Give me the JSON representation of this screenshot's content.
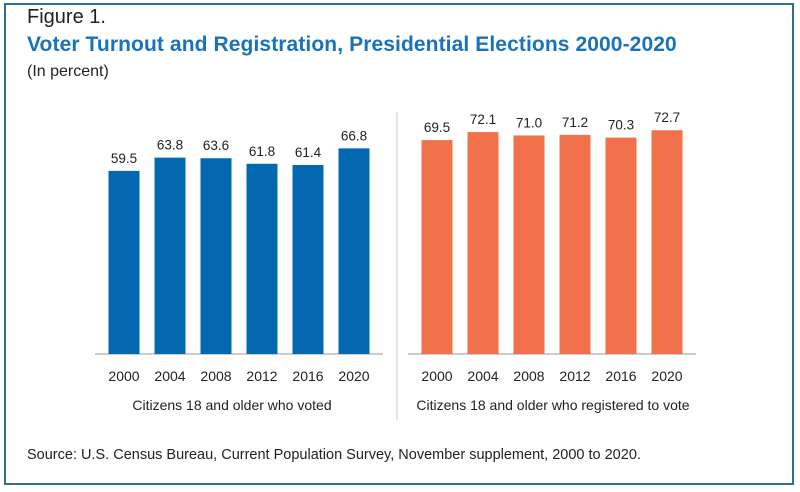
{
  "figure": {
    "label": "Figure 1.",
    "title": "Voter Turnout and Registration, Presidential Elections 2000-2020",
    "subtitle": "(In percent)",
    "source": "Source: U.S. Census Bureau, Current Population Survey, November supplement, 2000 to 2020."
  },
  "colors": {
    "voted": "#0468b1",
    "registered": "#f0714a",
    "frame": "#2b6f96",
    "title": "#1a73b8"
  },
  "chart_data": [
    {
      "type": "bar",
      "title": "",
      "xlabel": "Citizens 18 and older who voted",
      "ylabel": "",
      "categories": [
        "2000",
        "2004",
        "2008",
        "2012",
        "2016",
        "2020"
      ],
      "values": [
        59.5,
        63.8,
        63.6,
        61.8,
        61.4,
        66.8
      ],
      "ylim": [
        0,
        100
      ],
      "grid": false,
      "color": "#0468b1"
    },
    {
      "type": "bar",
      "title": "",
      "xlabel": "Citizens 18 and older who registered to vote",
      "ylabel": "",
      "categories": [
        "2000",
        "2004",
        "2008",
        "2012",
        "2016",
        "2020"
      ],
      "values": [
        69.5,
        72.1,
        71.0,
        71.2,
        70.3,
        72.7
      ],
      "ylim": [
        0,
        100
      ],
      "grid": false,
      "color": "#f0714a"
    }
  ]
}
